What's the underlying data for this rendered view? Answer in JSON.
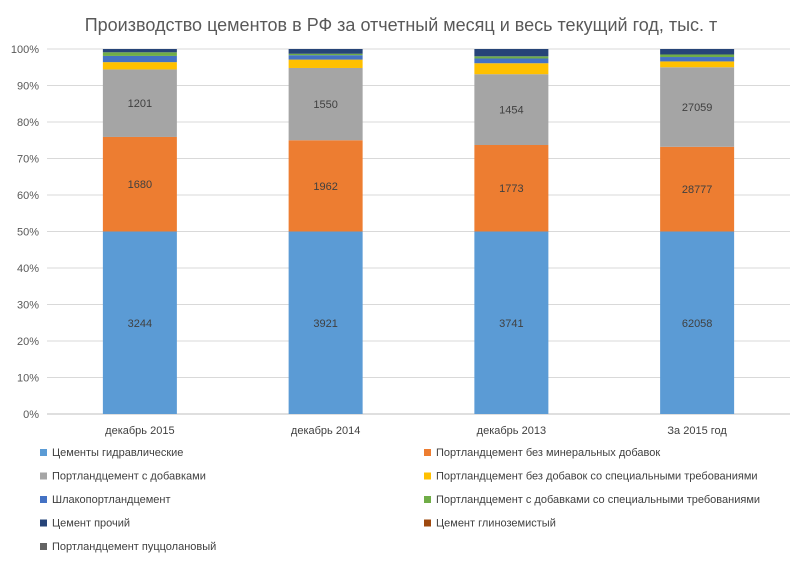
{
  "chart_data": {
    "type": "bar",
    "stacked": "percent",
    "title": "Производство цементов в РФ за отчетный месяц и весь текущий год, тыс. т",
    "xlabel": "",
    "ylabel": "",
    "ylim": [
      0,
      100
    ],
    "grid": true,
    "legend_position": "bottom",
    "y_ticks": [
      "0%",
      "10%",
      "20%",
      "30%",
      "40%",
      "50%",
      "60%",
      "70%",
      "80%",
      "90%",
      "100%"
    ],
    "categories": [
      "декабрь 2015",
      "декабрь 2014",
      "декабрь 2013",
      "За 2015 год"
    ],
    "series": [
      {
        "name": "Цементы гидравлические",
        "color": "#5B9BD5",
        "values": [
          50.0,
          50.0,
          50.0,
          50.0
        ],
        "labels": [
          "3244",
          "3921",
          "3741",
          "62058"
        ]
      },
      {
        "name": "Портландцемент без минеральных добавок",
        "color": "#ED7D31",
        "values": [
          25.9,
          25.0,
          23.7,
          23.2
        ],
        "labels": [
          "1680",
          "1962",
          "1773",
          "28777"
        ]
      },
      {
        "name": "Портландцемент с добавками",
        "color": "#A5A5A5",
        "values": [
          18.5,
          19.8,
          19.4,
          21.8
        ],
        "labels": [
          "1201",
          "1550",
          "1454",
          "27059"
        ]
      },
      {
        "name": "Портландцемент без добавок со специальными требованиями",
        "color": "#FFC000",
        "values": [
          2.0,
          2.3,
          3.0,
          1.6
        ],
        "labels": [
          "",
          "",
          "",
          ""
        ]
      },
      {
        "name": "Шлакопортландцемент",
        "color": "#4472C4",
        "values": [
          1.7,
          1.2,
          1.3,
          1.2
        ],
        "labels": [
          "",
          "",
          "",
          ""
        ]
      },
      {
        "name": "Портландцемент с добавками со специальными требованиями",
        "color": "#70AD47",
        "values": [
          1.0,
          0.4,
          0.6,
          0.7
        ],
        "labels": [
          "",
          "",
          "",
          ""
        ]
      },
      {
        "name": "Цемент прочий",
        "color": "#264478",
        "values": [
          0.9,
          1.3,
          2.0,
          1.5
        ],
        "labels": [
          "",
          "",
          "",
          ""
        ]
      },
      {
        "name": "Цемент глиноземистый",
        "color": "#9E480E",
        "values": [
          0.0,
          0.0,
          0.0,
          0.0
        ],
        "labels": [
          "",
          "",
          "",
          ""
        ]
      },
      {
        "name": "Портландцемент пуццолановый",
        "color": "#636363",
        "values": [
          0.0,
          0.0,
          0.0,
          0.0
        ],
        "labels": [
          "",
          "",
          "",
          ""
        ]
      }
    ]
  }
}
